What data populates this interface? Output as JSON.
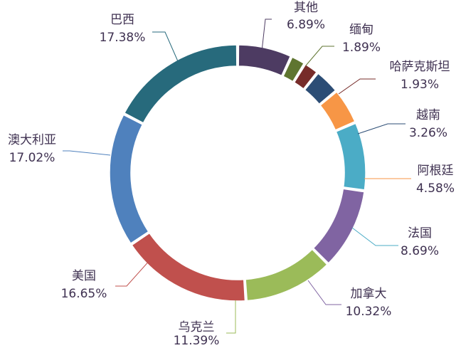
{
  "chart_data": {
    "type": "pie",
    "variant": "doughnut",
    "title": "",
    "legend": "none",
    "series": [
      {
        "values": [
          6.89,
          1.89,
          1.93,
          3.26,
          4.58,
          8.69,
          10.32,
          11.39,
          16.65,
          17.02,
          17.38
        ]
      }
    ],
    "slices": [
      {
        "label": "其他",
        "value": 6.89,
        "display": "6.89%",
        "color": "#4d3b62"
      },
      {
        "label": "缅甸",
        "value": 1.89,
        "display": "1.89%",
        "color": "#5f7530"
      },
      {
        "label": "哈萨克斯坦",
        "value": 1.93,
        "display": "1.93%",
        "color": "#772c2a"
      },
      {
        "label": "越南",
        "value": 3.26,
        "display": "3.26%",
        "color": "#2c4d75"
      },
      {
        "label": "阿根廷",
        "value": 4.58,
        "display": "4.58%",
        "color": "#f79646"
      },
      {
        "label": "法国",
        "value": 8.69,
        "display": "8.69%",
        "color": "#4bacc6"
      },
      {
        "label": "加拿大",
        "value": 10.32,
        "display": "10.32%",
        "color": "#8064a2"
      },
      {
        "label": "乌克兰",
        "value": 11.39,
        "display": "11.39%",
        "color": "#9bbb59"
      },
      {
        "label": "美国",
        "value": 16.65,
        "display": "16.65%",
        "color": "#c0504d"
      },
      {
        "label": "澳大利亚",
        "value": 17.02,
        "display": "17.02%",
        "color": "#4f81bd"
      },
      {
        "label": "巴西",
        "value": 17.38,
        "display": "17.38%",
        "color": "#276a7c"
      }
    ]
  }
}
